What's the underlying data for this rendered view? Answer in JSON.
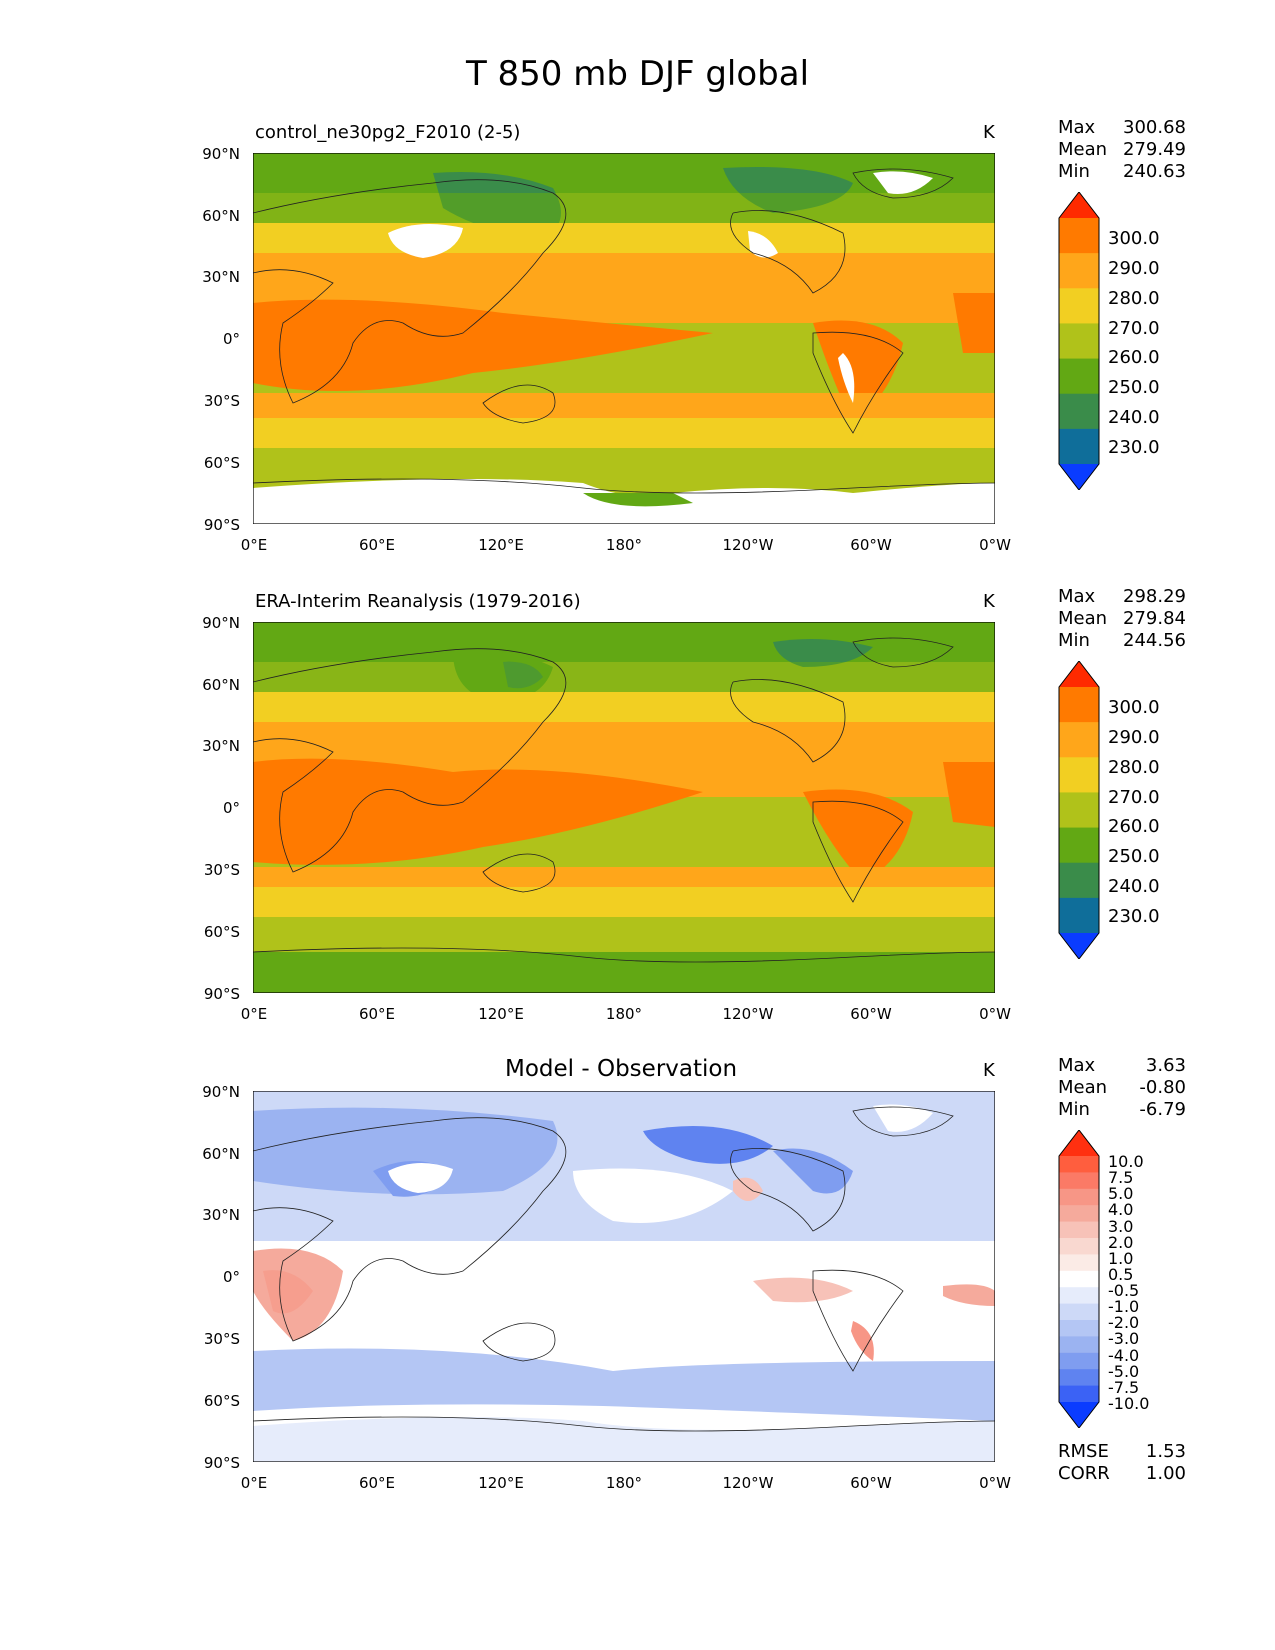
{
  "figure_title": "T 850 mb DJF global",
  "units": "K",
  "lat_ticks": [
    "90°N",
    "60°N",
    "30°N",
    "0°",
    "30°S",
    "60°S",
    "90°S"
  ],
  "lon_ticks": [
    "0°E",
    "60°E",
    "120°E",
    "180°",
    "120°W",
    "60°W",
    "0°W"
  ],
  "panels": [
    {
      "title": "control_ne30pg2_F2010 (2-5)",
      "stats": {
        "max_label": "Max",
        "max": "300.68",
        "mean_label": "Mean",
        "mean": "279.49",
        "min_label": "Min",
        "min": "240.63"
      },
      "colorbar": {
        "levels": [
          "300.0",
          "290.0",
          "280.0",
          "270.0",
          "260.0",
          "250.0",
          "240.0",
          "230.0"
        ],
        "colors": [
          "#ff2a00",
          "#ff7a00",
          "#ffa61a",
          "#f2cf22",
          "#b0c21a",
          "#62a814",
          "#3a8c4a",
          "#0f6e9a",
          "#0a3cff"
        ]
      }
    },
    {
      "title": "ERA-Interim Reanalysis (1979-2016)",
      "stats": {
        "max_label": "Max",
        "max": "298.29",
        "mean_label": "Mean",
        "mean": "279.84",
        "min_label": "Min",
        "min": "244.56"
      },
      "colorbar": {
        "levels": [
          "300.0",
          "290.0",
          "280.0",
          "270.0",
          "260.0",
          "250.0",
          "240.0",
          "230.0"
        ],
        "colors": [
          "#ff2a00",
          "#ff7a00",
          "#ffa61a",
          "#f2cf22",
          "#b0c21a",
          "#62a814",
          "#3a8c4a",
          "#0f6e9a",
          "#0a3cff"
        ]
      }
    },
    {
      "title": "Model - Observation",
      "stats": {
        "max_label": "Max",
        "max": "3.63",
        "mean_label": "Mean",
        "mean": "-0.80",
        "min_label": "Min",
        "min": "-6.79"
      },
      "colorbar": {
        "levels": [
          "10.0",
          "7.5",
          "5.0",
          "4.0",
          "3.0",
          "2.0",
          "1.0",
          "0.5",
          "-0.5",
          "-1.0",
          "-2.0",
          "-3.0",
          "-4.0",
          "-5.0",
          "-7.5",
          "-10.0"
        ],
        "colors": [
          "#ff3010",
          "#ff5e3e",
          "#fb7a66",
          "#f79686",
          "#f5aa9c",
          "#f7c2b8",
          "#f9d8d0",
          "#fbebe6",
          "#ffffff",
          "#e6ecfb",
          "#cdd9f7",
          "#b4c6f4",
          "#9bb3f1",
          "#7f9df0",
          "#5f83f0",
          "#3b62f5",
          "#0a3cff"
        ]
      },
      "rmse_label": "RMSE",
      "rmse": "1.53",
      "corr_label": "CORR",
      "corr": "1.00"
    }
  ]
}
